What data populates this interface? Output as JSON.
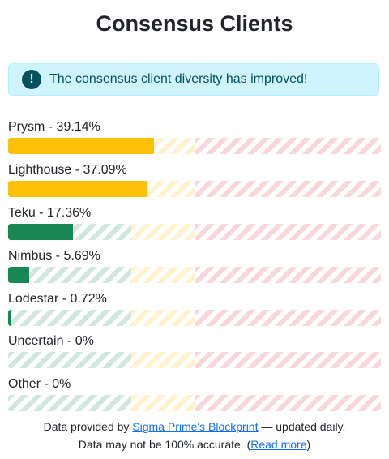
{
  "title": "Consensus Clients",
  "alert": {
    "icon": "exclamation-circle-icon",
    "text": "The consensus client diversity has improved!",
    "color": "#055160",
    "background": "#cff4fc"
  },
  "colors": {
    "majority_fill": "#ffc107",
    "minority_fill": "#198754"
  },
  "clients": [
    {
      "label": "Prysm - 39.14%",
      "percent": 39.14,
      "status": "warning"
    },
    {
      "label": "Lighthouse - 37.09%",
      "percent": 37.09,
      "status": "warning"
    },
    {
      "label": "Teku - 17.36%",
      "percent": 17.36,
      "status": "safe"
    },
    {
      "label": "Nimbus - 5.69%",
      "percent": 5.69,
      "status": "safe"
    },
    {
      "label": "Lodestar - 0.72%",
      "percent": 0.72,
      "status": "safe"
    },
    {
      "label": "Uncertain - 0%",
      "percent": 0,
      "status": "safe"
    },
    {
      "label": "Other - 0%",
      "percent": 0,
      "status": "safe"
    }
  ],
  "footer": {
    "line1_prefix": "Data provided by ",
    "link1": "Sigma Prime's Blockprint",
    "line1_suffix": " — updated daily.",
    "line2_prefix": "Data may not be 100% accurate. (",
    "link2": "Read more",
    "line2_suffix": ")"
  }
}
